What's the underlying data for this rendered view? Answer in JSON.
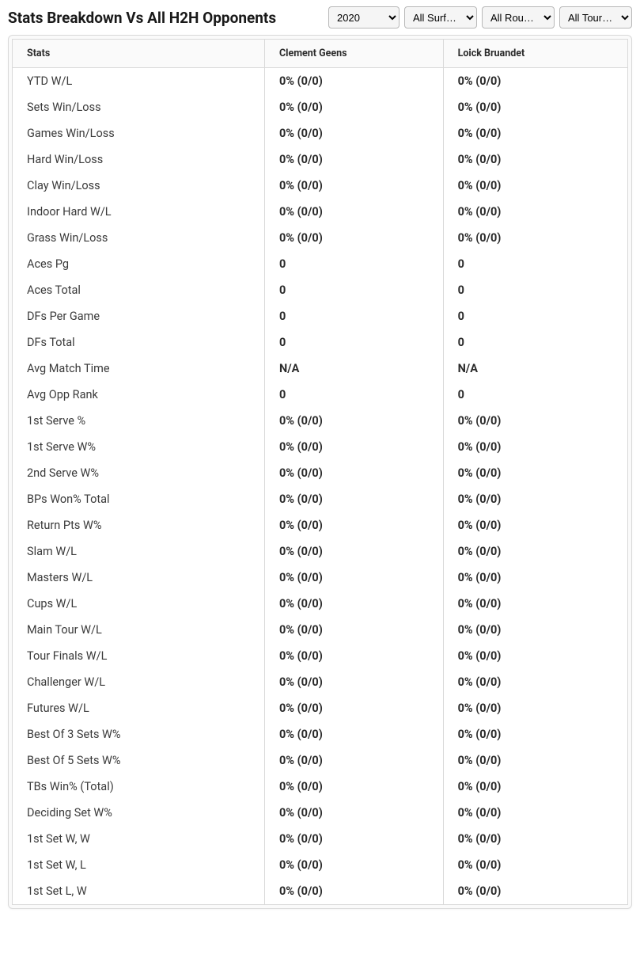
{
  "title": "Stats Breakdown Vs All H2H Opponents",
  "filters": {
    "year": {
      "selected": "2020"
    },
    "surface": {
      "selected": "All Surf…"
    },
    "round": {
      "selected": "All Rou…"
    },
    "tour": {
      "selected": "All Tour…"
    }
  },
  "columns": {
    "stats": "Stats",
    "player1": "Clement Geens",
    "player2": "Loick Bruandet"
  },
  "rows": [
    {
      "label": "YTD W/L",
      "p1": "0% (0/0)",
      "p2": "0% (0/0)"
    },
    {
      "label": "Sets Win/Loss",
      "p1": "0% (0/0)",
      "p2": "0% (0/0)"
    },
    {
      "label": "Games Win/Loss",
      "p1": "0% (0/0)",
      "p2": "0% (0/0)"
    },
    {
      "label": "Hard Win/Loss",
      "p1": "0% (0/0)",
      "p2": "0% (0/0)"
    },
    {
      "label": "Clay Win/Loss",
      "p1": "0% (0/0)",
      "p2": "0% (0/0)"
    },
    {
      "label": "Indoor Hard W/L",
      "p1": "0% (0/0)",
      "p2": "0% (0/0)"
    },
    {
      "label": "Grass Win/Loss",
      "p1": "0% (0/0)",
      "p2": "0% (0/0)"
    },
    {
      "label": "Aces Pg",
      "p1": "0",
      "p2": "0"
    },
    {
      "label": "Aces Total",
      "p1": "0",
      "p2": "0"
    },
    {
      "label": "DFs Per Game",
      "p1": "0",
      "p2": "0"
    },
    {
      "label": "DFs Total",
      "p1": "0",
      "p2": "0"
    },
    {
      "label": "Avg Match Time",
      "p1": "N/A",
      "p2": "N/A"
    },
    {
      "label": "Avg Opp Rank",
      "p1": "0",
      "p2": "0"
    },
    {
      "label": "1st Serve %",
      "p1": "0% (0/0)",
      "p2": "0% (0/0)"
    },
    {
      "label": "1st Serve W%",
      "p1": "0% (0/0)",
      "p2": "0% (0/0)"
    },
    {
      "label": "2nd Serve W%",
      "p1": "0% (0/0)",
      "p2": "0% (0/0)"
    },
    {
      "label": "BPs Won% Total",
      "p1": "0% (0/0)",
      "p2": "0% (0/0)"
    },
    {
      "label": "Return Pts W%",
      "p1": "0% (0/0)",
      "p2": "0% (0/0)"
    },
    {
      "label": "Slam W/L",
      "p1": "0% (0/0)",
      "p2": "0% (0/0)"
    },
    {
      "label": "Masters W/L",
      "p1": "0% (0/0)",
      "p2": "0% (0/0)"
    },
    {
      "label": "Cups W/L",
      "p1": "0% (0/0)",
      "p2": "0% (0/0)"
    },
    {
      "label": "Main Tour W/L",
      "p1": "0% (0/0)",
      "p2": "0% (0/0)"
    },
    {
      "label": "Tour Finals W/L",
      "p1": "0% (0/0)",
      "p2": "0% (0/0)"
    },
    {
      "label": "Challenger W/L",
      "p1": "0% (0/0)",
      "p2": "0% (0/0)"
    },
    {
      "label": "Futures W/L",
      "p1": "0% (0/0)",
      "p2": "0% (0/0)"
    },
    {
      "label": "Best Of 3 Sets W%",
      "p1": "0% (0/0)",
      "p2": "0% (0/0)"
    },
    {
      "label": "Best Of 5 Sets W%",
      "p1": "0% (0/0)",
      "p2": "0% (0/0)"
    },
    {
      "label": "TBs Win% (Total)",
      "p1": "0% (0/0)",
      "p2": "0% (0/0)"
    },
    {
      "label": "Deciding Set W%",
      "p1": "0% (0/0)",
      "p2": "0% (0/0)"
    },
    {
      "label": "1st Set W, W",
      "p1": "0% (0/0)",
      "p2": "0% (0/0)"
    },
    {
      "label": "1st Set W, L",
      "p1": "0% (0/0)",
      "p2": "0% (0/0)"
    },
    {
      "label": "1st Set L, W",
      "p1": "0% (0/0)",
      "p2": "0% (0/0)"
    }
  ]
}
